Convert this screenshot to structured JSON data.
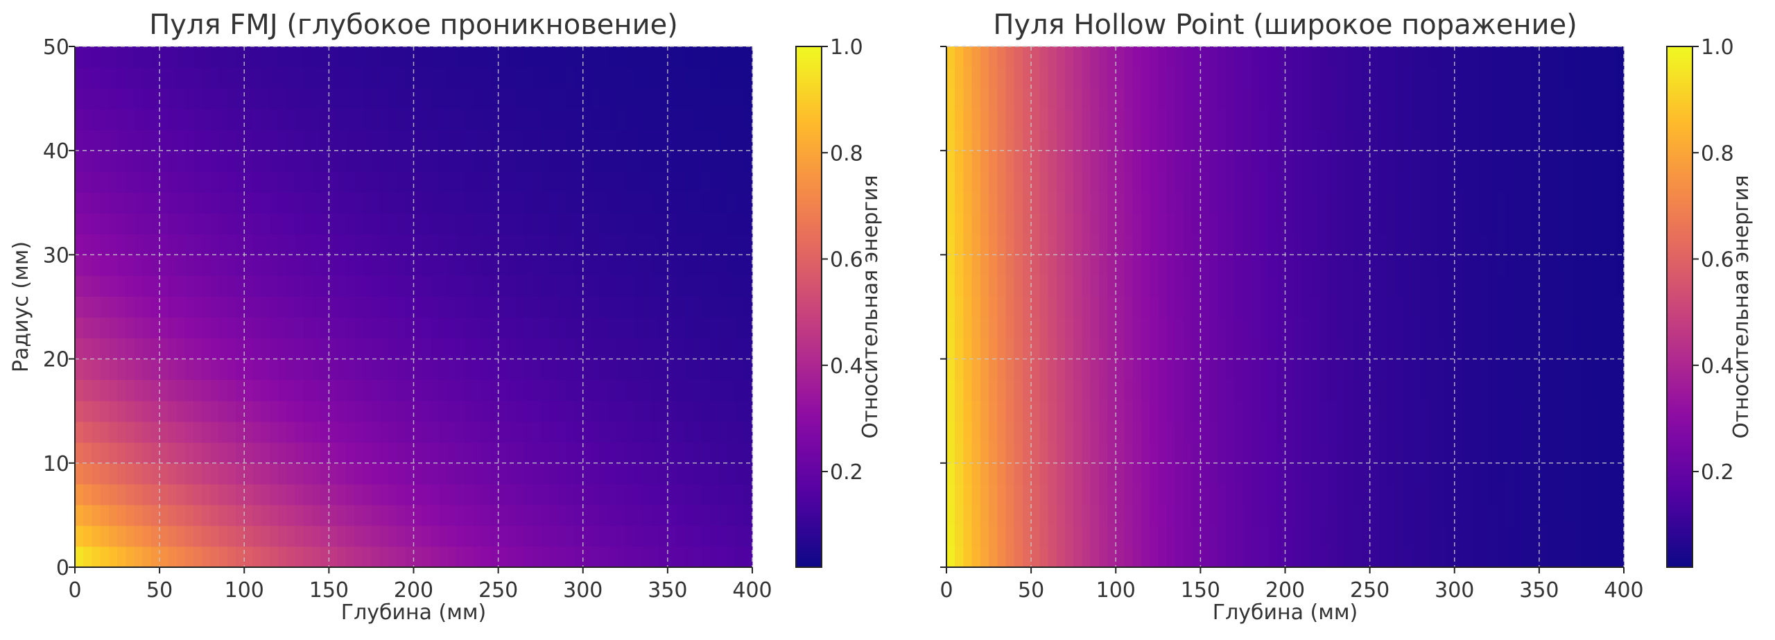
{
  "chart_data": [
    {
      "type": "heatmap",
      "title": "Пуля FMJ (глубокое проникновение)",
      "xlabel": "Глубина (мм)",
      "ylabel": "Радиус (мм)",
      "xlim": [
        0,
        400
      ],
      "ylim": [
        0,
        50
      ],
      "xticks": [
        "0",
        "50",
        "100",
        "150",
        "200",
        "250",
        "300",
        "350",
        "400"
      ],
      "yticks": [
        "0",
        "10",
        "20",
        "30",
        "40",
        "50"
      ],
      "grid": true,
      "colormap": "plasma",
      "model": {
        "form": "exp(-x/a) * exp(-y/b)",
        "a": 200,
        "b": 25
      },
      "colorbar": {
        "label": "Относительная энергия",
        "ticks": [
          "0.2",
          "0.4",
          "0.6",
          "0.8",
          "1.0"
        ],
        "range": [
          0.02,
          1.0
        ]
      }
    },
    {
      "type": "heatmap",
      "title": "Пуля Hollow Point (широкое поражение)",
      "xlabel": "Глубина (мм)",
      "ylabel": "",
      "xlim": [
        0,
        400
      ],
      "ylim": [
        0,
        50
      ],
      "xticks": [
        "0",
        "50",
        "100",
        "150",
        "200",
        "250",
        "300",
        "350",
        "400"
      ],
      "yticks": [],
      "grid": true,
      "colormap": "plasma",
      "model": {
        "form": "exp(-x/a) * exp(-y/b)",
        "a": 100,
        "b": 500
      },
      "colorbar": {
        "label": "Относительная энергия",
        "ticks": [
          "0.2",
          "0.4",
          "0.6",
          "0.8",
          "1.0"
        ],
        "range": [
          0.02,
          1.0
        ]
      }
    }
  ]
}
